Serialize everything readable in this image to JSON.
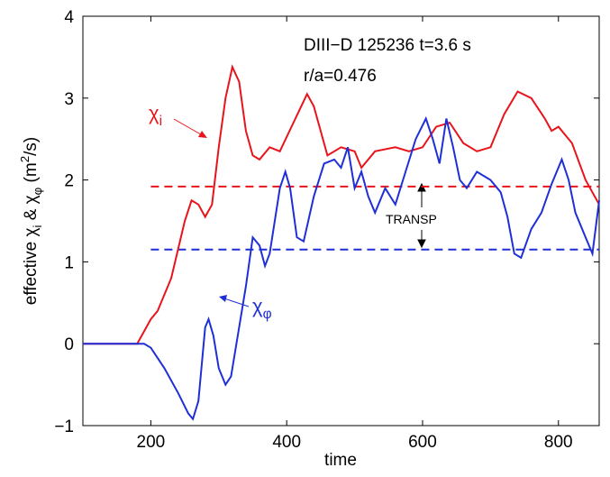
{
  "chart_data": {
    "type": "line",
    "xlabel": "time",
    "ylabel": [
      "effective  χ",
      {
        "sub": "i"
      },
      "  &  χ",
      {
        "sub": "φ"
      },
      "  (m",
      {
        "sup": "2"
      },
      "/s)"
    ],
    "xlim": [
      100,
      860
    ],
    "ylim": [
      -1,
      4
    ],
    "xticks": [
      200,
      400,
      600,
      800
    ],
    "yticks": [
      {
        "value": -1,
        "label": "−1"
      },
      0,
      1,
      2,
      3,
      4
    ],
    "annotations": [
      "DIII−D 125236 t=3.6 s",
      "r/a=0.476",
      "TRANSP"
    ],
    "series": [
      {
        "name": [
          "χ",
          {
            "sub": "i"
          }
        ],
        "color": "#e8141b",
        "x": [
          100,
          180,
          200,
          210,
          230,
          250,
          260,
          270,
          280,
          290,
          300,
          310,
          320,
          330,
          340,
          350,
          360,
          375,
          390,
          410,
          430,
          440,
          460,
          480,
          500,
          510,
          530,
          560,
          580,
          600,
          620,
          640,
          660,
          680,
          700,
          720,
          740,
          760,
          780,
          790,
          800,
          820,
          840,
          860
        ],
        "values": [
          0,
          0,
          0.3,
          0.4,
          0.8,
          1.5,
          1.75,
          1.7,
          1.55,
          1.7,
          2.4,
          3.0,
          3.38,
          3.2,
          2.6,
          2.3,
          2.25,
          2.4,
          2.35,
          2.7,
          3.05,
          2.9,
          2.3,
          2.4,
          2.35,
          2.15,
          2.35,
          2.4,
          2.35,
          2.4,
          2.65,
          2.7,
          2.45,
          2.35,
          2.4,
          2.8,
          3.08,
          3.0,
          2.75,
          2.6,
          2.65,
          2.45,
          2.0,
          1.7
        ]
      },
      {
        "name": [
          "χ",
          {
            "sub": "φ"
          }
        ],
        "color": "#1f2fd6",
        "x": [
          100,
          190,
          200,
          220,
          240,
          255,
          262,
          270,
          280,
          285,
          292,
          300,
          310,
          318,
          330,
          340,
          350,
          360,
          368,
          375,
          390,
          398,
          405,
          415,
          425,
          440,
          455,
          470,
          480,
          490,
          500,
          510,
          520,
          530,
          545,
          560,
          575,
          590,
          605,
          615,
          625,
          635,
          645,
          655,
          665,
          680,
          700,
          715,
          725,
          735,
          745,
          760,
          775,
          790,
          805,
          815,
          825,
          840,
          850,
          860
        ],
        "values": [
          0,
          0,
          -0.05,
          -0.3,
          -0.6,
          -0.85,
          -0.92,
          -0.7,
          0.2,
          0.3,
          0.1,
          -0.3,
          -0.5,
          -0.4,
          0.2,
          0.7,
          1.3,
          1.2,
          0.95,
          1.1,
          1.9,
          2.1,
          1.9,
          1.3,
          1.25,
          1.8,
          2.2,
          2.25,
          2.15,
          2.4,
          1.9,
          2.1,
          1.8,
          1.6,
          1.9,
          1.7,
          2.1,
          2.5,
          2.75,
          2.5,
          2.2,
          2.75,
          2.4,
          2.0,
          1.9,
          2.1,
          2.0,
          1.85,
          1.55,
          1.1,
          1.05,
          1.4,
          1.6,
          1.95,
          2.25,
          2.0,
          1.6,
          1.3,
          1.1,
          1.75
        ]
      }
    ],
    "reference_lines": [
      {
        "value": 1.92,
        "color": "#e8141b"
      },
      {
        "value": 1.15,
        "color": "#1f2fd6"
      }
    ]
  }
}
